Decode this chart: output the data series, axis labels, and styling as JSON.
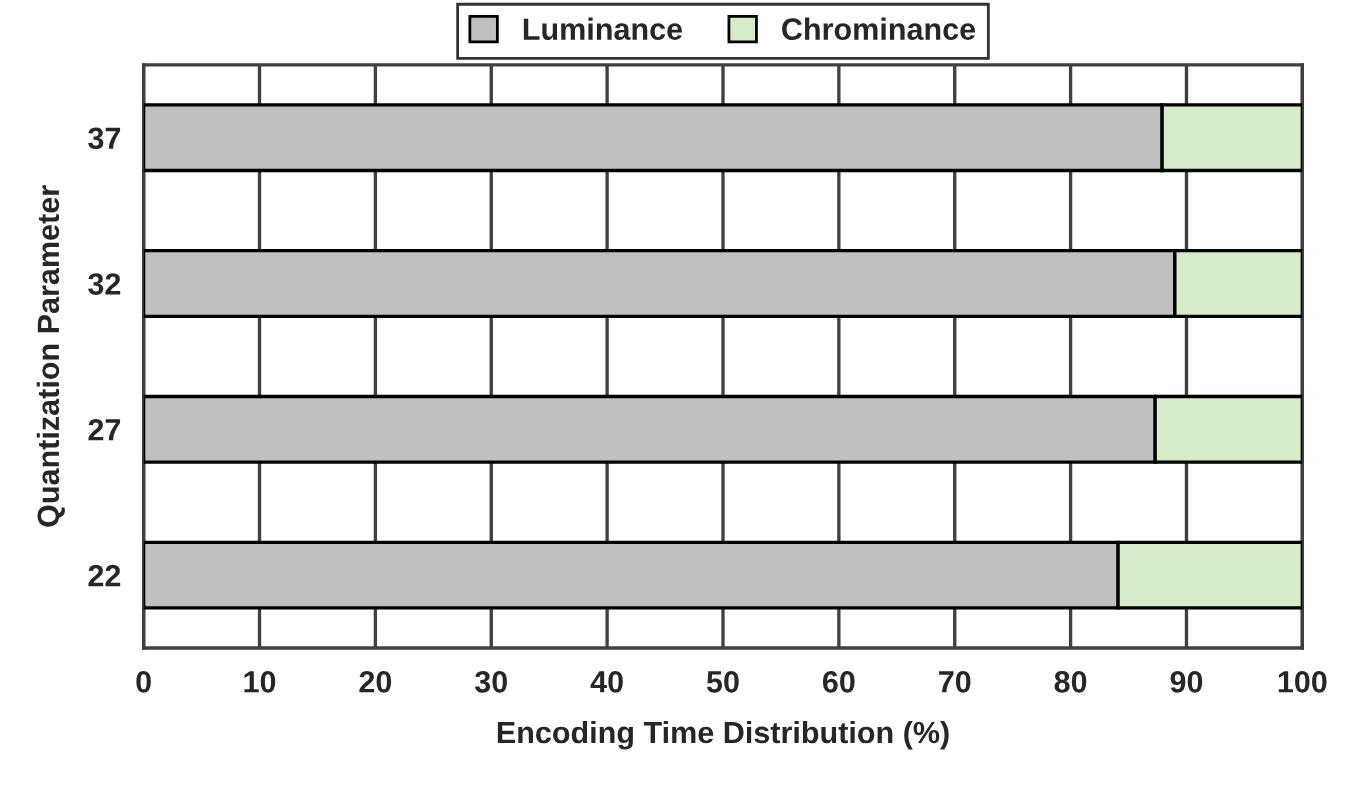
{
  "chart_data": {
    "type": "bar",
    "orientation": "horizontal",
    "stacked": true,
    "xlabel": "Encoding Time Distribution (%)",
    "ylabel": "Quantization Parameter",
    "categories": [
      "37",
      "32",
      "27",
      "22"
    ],
    "series": [
      {
        "name": "Luminance",
        "color": "#c0c0c0",
        "values": [
          87.9,
          89.0,
          87.3,
          84.1
        ]
      },
      {
        "name": "Chrominance",
        "color": "#d6ebc9",
        "values": [
          12.1,
          11.0,
          12.7,
          15.9
        ]
      }
    ],
    "xlim": [
      0,
      100
    ],
    "xticks": [
      0,
      10,
      20,
      30,
      40,
      50,
      60,
      70,
      80,
      90,
      100
    ],
    "grid": "x",
    "legend": "top"
  }
}
